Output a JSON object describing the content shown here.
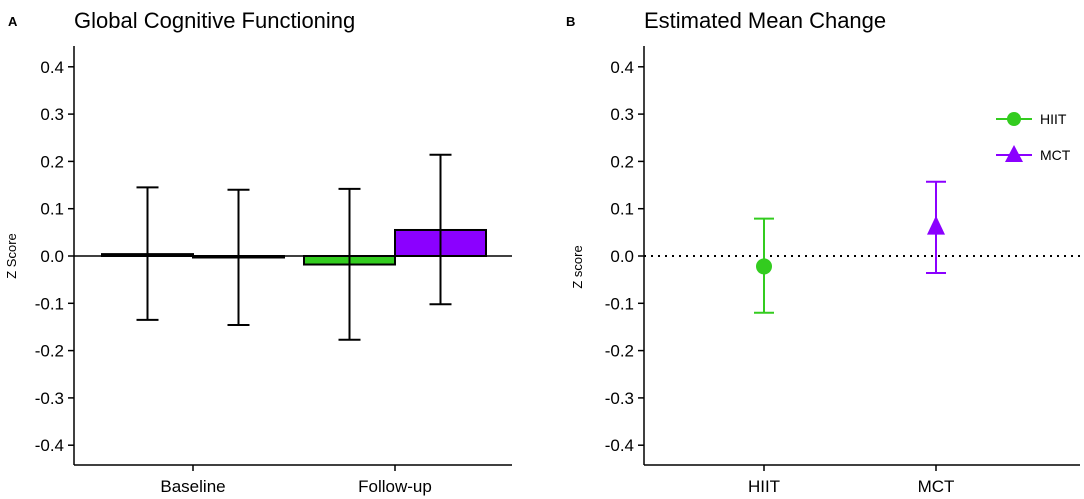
{
  "chart_data": [
    {
      "panel": "A",
      "type": "bar",
      "title": "Global Cognitive Functioning",
      "xlabel": "",
      "ylabel": "Z Score",
      "ylim": [
        -0.45,
        0.45
      ],
      "yticks": [
        "0.4",
        "0.3",
        "0.2",
        "0.1",
        "0.0",
        "-0.1",
        "-0.2",
        "-0.3",
        "-0.4"
      ],
      "categories": [
        "Baseline",
        "Follow-up"
      ],
      "series": [
        {
          "name": "HIIT",
          "color": "#33cc1f",
          "values": [
            0.004,
            -0.018
          ],
          "error_low": [
            -0.135,
            -0.177
          ],
          "error_high": [
            0.145,
            0.142
          ]
        },
        {
          "name": "MCT",
          "color": "#8b00ff",
          "values": [
            -0.003,
            0.055
          ],
          "error_low": [
            -0.146,
            -0.102
          ],
          "error_high": [
            0.14,
            0.214
          ]
        }
      ]
    },
    {
      "panel": "B",
      "type": "scatter",
      "title": "Estimated Mean Change",
      "xlabel": "",
      "ylabel": "Z score",
      "ylim": [
        -0.45,
        0.45
      ],
      "yticks": [
        "0.4",
        "0.3",
        "0.2",
        "0.1",
        "0.0",
        "-0.1",
        "-0.2",
        "-0.3",
        "-0.4"
      ],
      "categories": [
        "HIIT",
        "MCT"
      ],
      "reference_line": 0,
      "series": [
        {
          "name": "HIIT",
          "color": "#33cc1f",
          "marker": "circle",
          "value": -0.022,
          "error_low": -0.12,
          "error_high": 0.079
        },
        {
          "name": "MCT",
          "color": "#8b00ff",
          "marker": "triangle",
          "value": 0.062,
          "error_low": -0.036,
          "error_high": 0.157
        }
      ],
      "legend": {
        "position": "top-right",
        "entries": [
          "HIIT",
          "MCT"
        ]
      }
    }
  ]
}
